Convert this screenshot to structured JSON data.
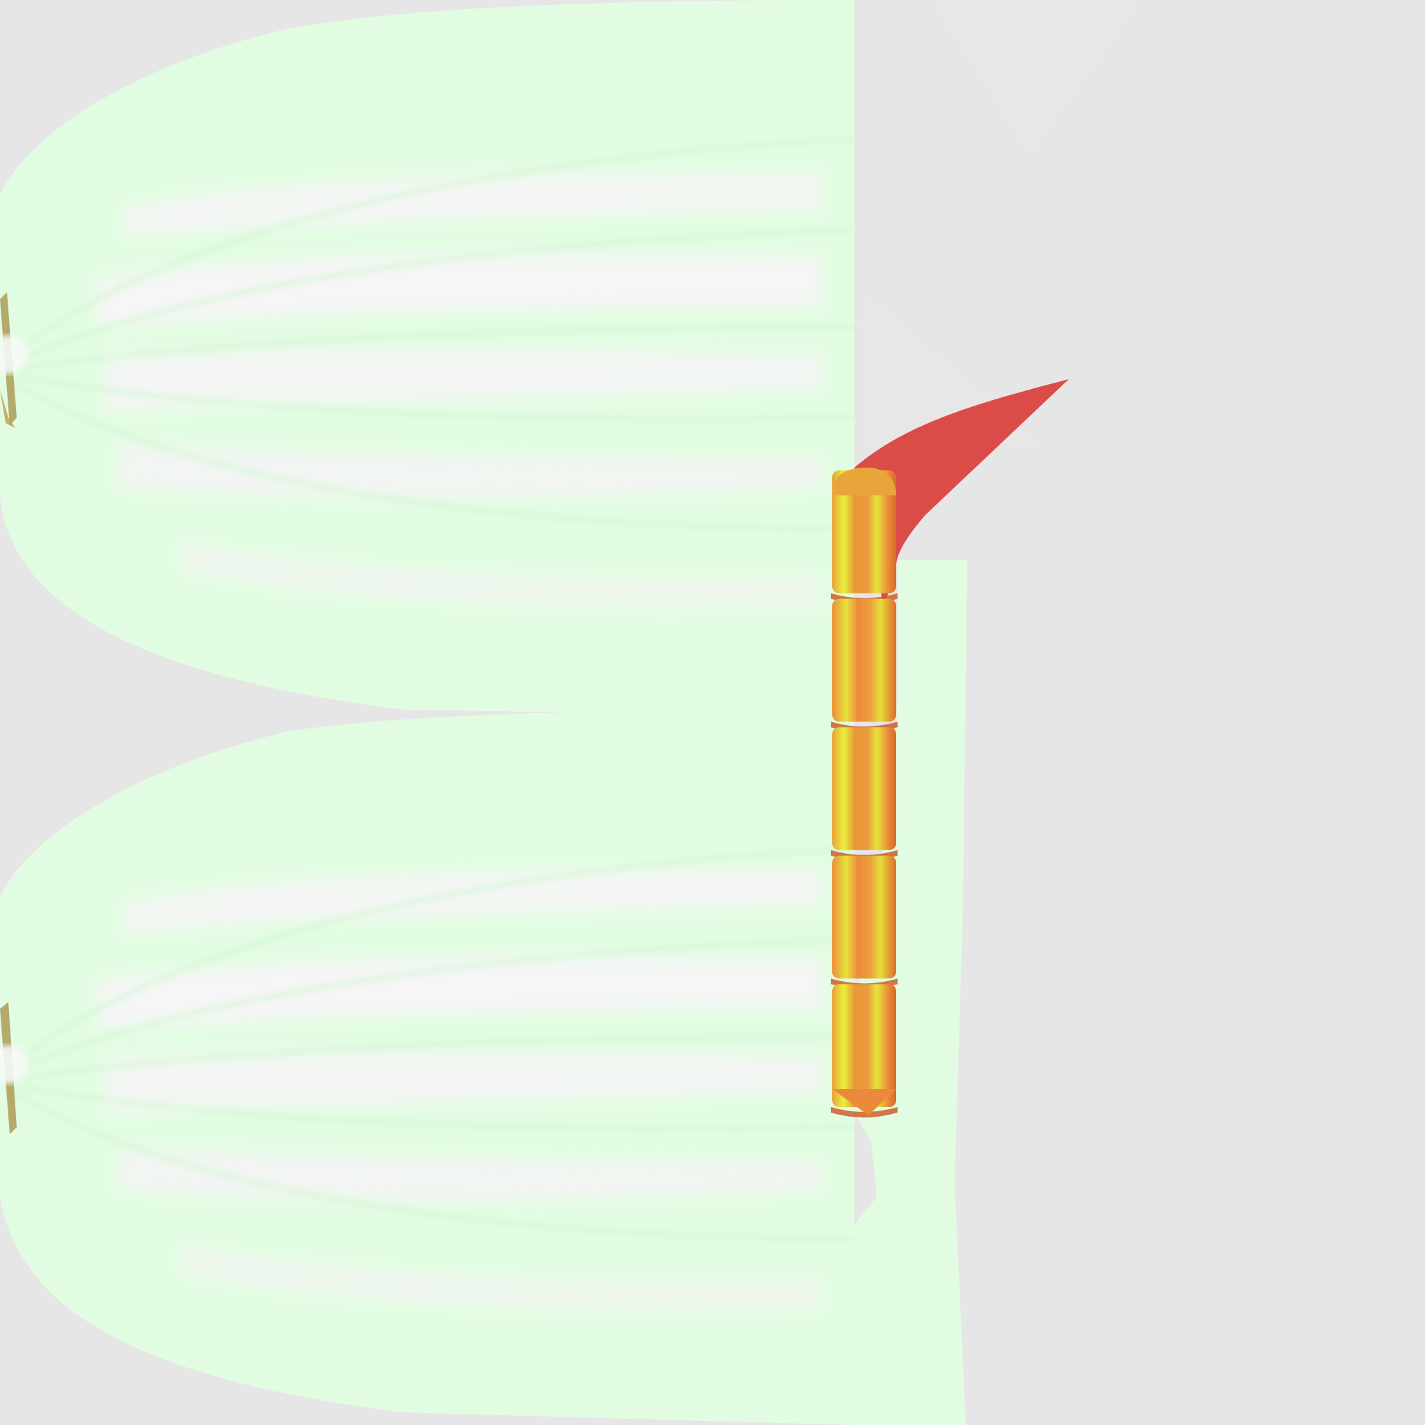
{
  "canvas": {
    "background_color": "#e6e6e6"
  },
  "texture_sheet": {
    "kind": "3d-model texture atlas",
    "parts": [
      {
        "name": "upper-leaf-shell",
        "icon": "leaf-shell-icon"
      },
      {
        "name": "lower-leaf-shell",
        "icon": "leaf-shell-icon"
      },
      {
        "name": "leaf-side-strip",
        "icon": "strip-icon"
      },
      {
        "name": "bamboo-stalk",
        "icon": "bamboo-stalk-icon",
        "segments": 5
      },
      {
        "name": "red-tip",
        "icon": "red-spike-icon"
      }
    ],
    "colors": {
      "leaf_fill": "#e2fce2",
      "leaf_band": "#f3f6f3",
      "leaf_edge": "#d7f8d7",
      "stalk_gold": "#e8a63a",
      "stalk_orange": "#ec8a3c",
      "stalk_highlight": "#e9f03a",
      "stalk_dark": "#c9561f",
      "tip_red": "#db4b48",
      "root_brown": "#a0883a"
    }
  }
}
